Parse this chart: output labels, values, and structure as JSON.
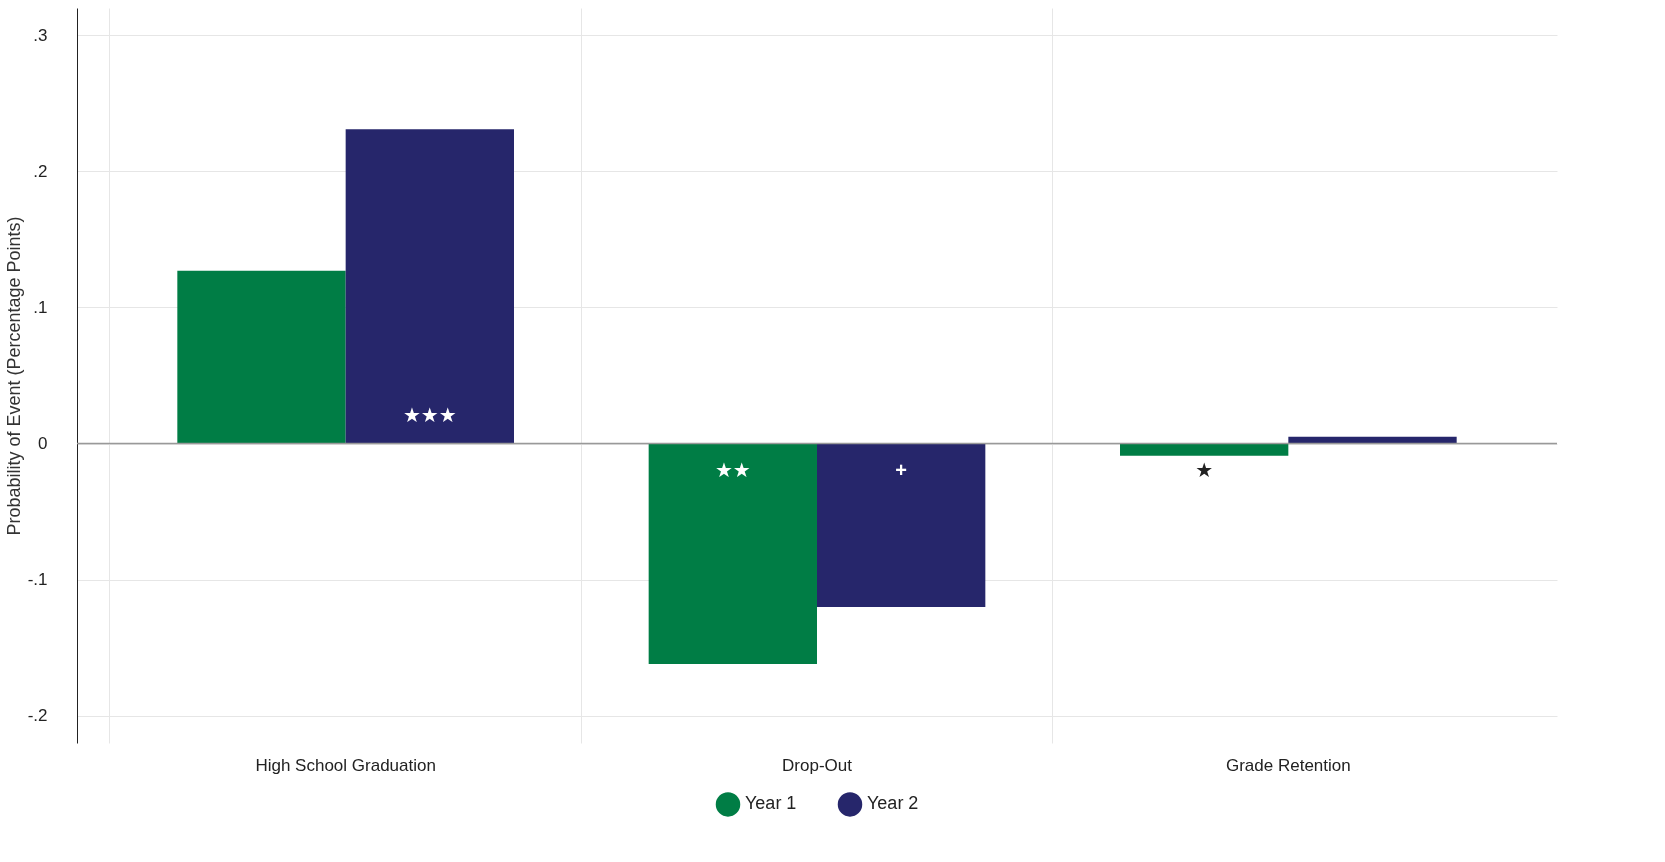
{
  "chart_data": {
    "type": "bar",
    "ylabel": "Probability of Event (Percentage Points)",
    "categories": [
      "High School Graduation",
      "Drop-Out",
      "Grade Retention"
    ],
    "series": [
      {
        "name": "Year 1",
        "color": "#007d45",
        "values": [
          0.127,
          -0.162,
          -0.009
        ],
        "value_labels": [
          null,
          "★★",
          "★"
        ]
      },
      {
        "name": "Year 2",
        "color": "#26266b",
        "values": [
          0.231,
          -0.12,
          0.005
        ],
        "value_labels": [
          "★★★",
          "+",
          null
        ]
      }
    ],
    "ylim": [
      -0.22,
      0.32
    ],
    "yticks": [
      {
        "value": -0.2,
        "label": "-.2"
      },
      {
        "value": -0.1,
        "label": "-.1"
      },
      0,
      {
        "value": 0.1,
        "label": ".1"
      },
      {
        "value": 0.2,
        "label": ".2"
      },
      {
        "value": 0.3,
        "label": ".3"
      }
    ],
    "ref_lines": [
      {
        "axis": "y",
        "value": 0,
        "color": "#999999"
      }
    ],
    "grid": true,
    "legend": "bottom"
  }
}
